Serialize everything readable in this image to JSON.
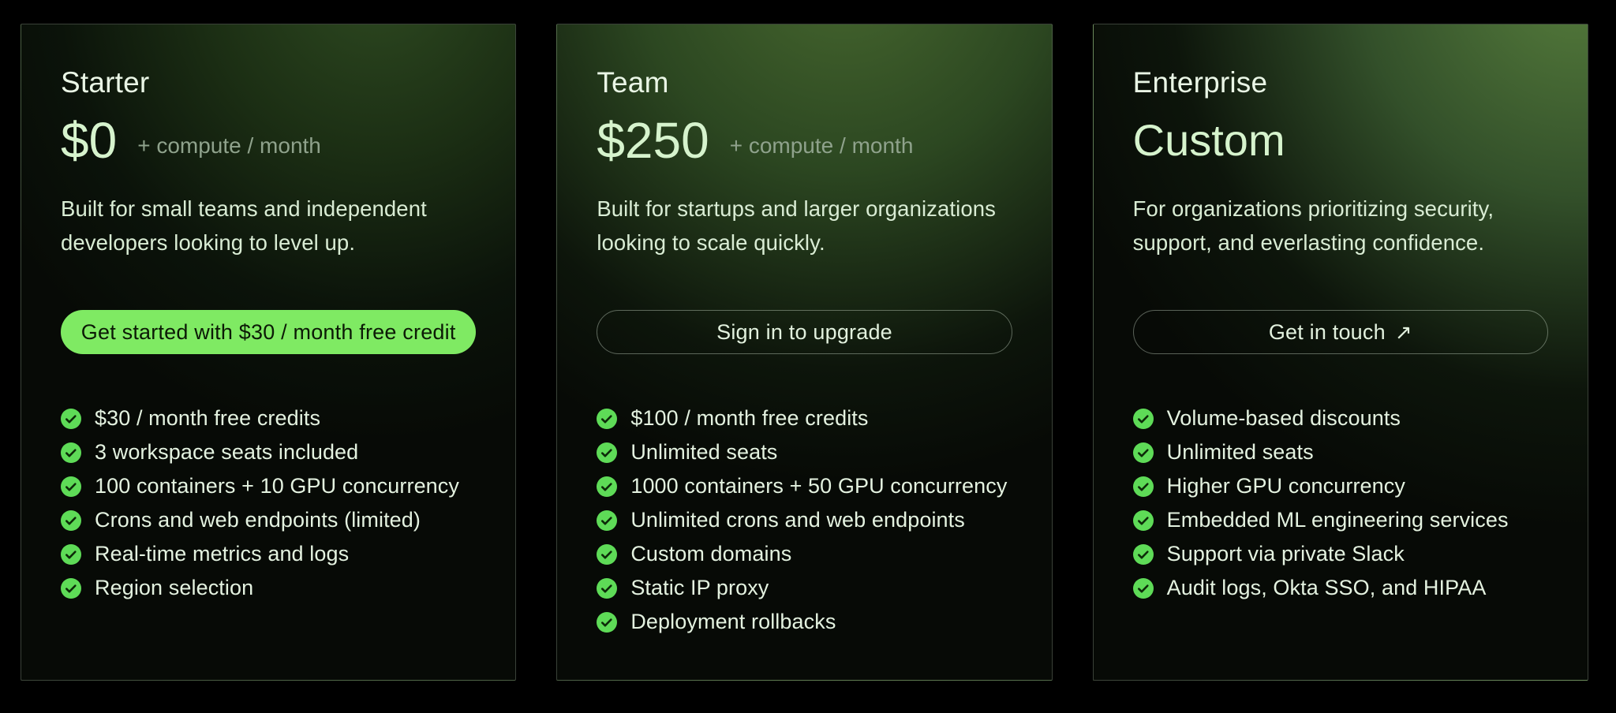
{
  "colors": {
    "page_background": "#000000",
    "accent_green": "#7fea63",
    "check_green": "#5edb57",
    "price_text": "#d6f3cd",
    "suffix_text": "#8fa28c"
  },
  "cards": [
    {
      "plan": "Starter",
      "price": "$0",
      "price_suffix": "+ compute / month",
      "description": "Built for small teams and independent\ndevelopers looking to level up.",
      "cta": {
        "label": "Get started with $30 / month free credit",
        "style": "solid"
      },
      "features": [
        "$30 / month free credits",
        "3 workspace seats included",
        "100 containers + 10 GPU concurrency",
        "Crons and web endpoints (limited)",
        "Real-time metrics and logs",
        "Region selection"
      ]
    },
    {
      "plan": "Team",
      "price": "$250",
      "price_suffix": "+ compute / month",
      "description": "Built for startups and larger organizations\nlooking to scale quickly.",
      "cta": {
        "label": "Sign in to upgrade",
        "style": "outline"
      },
      "features": [
        "$100 / month free credits",
        "Unlimited seats",
        "1000 containers + 50 GPU concurrency",
        "Unlimited crons and web endpoints",
        "Custom domains",
        "Static IP proxy",
        "Deployment rollbacks"
      ]
    },
    {
      "plan": "Enterprise",
      "price": "Custom",
      "price_suffix": "",
      "description": "For organizations prioritizing security,\nsupport, and everlasting confidence.",
      "cta": {
        "label": "Get in touch",
        "arrow": "↗",
        "style": "outline"
      },
      "features": [
        "Volume-based discounts",
        "Unlimited seats",
        "Higher GPU concurrency",
        "Embedded ML engineering services",
        "Support via private Slack",
        "Audit logs, Okta SSO, and HIPAA"
      ]
    }
  ]
}
